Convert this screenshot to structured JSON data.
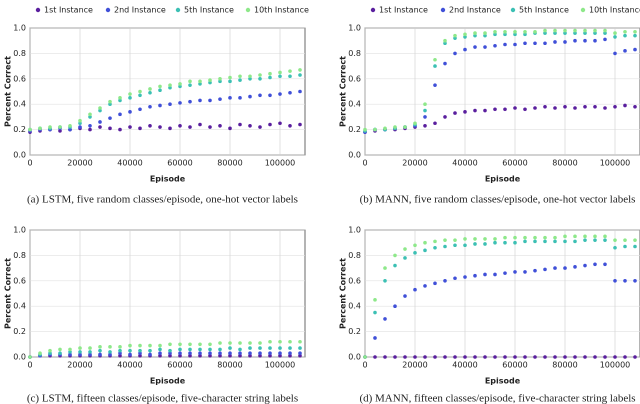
{
  "chart_data": [
    {
      "type": "scatter",
      "caption": "(a) LSTM, five random classes/episode, one-hot vector labels",
      "xlabel": "Episode",
      "ylabel": "Percent Correct",
      "legend": "top",
      "grid": true,
      "xlim": [
        0,
        110000
      ],
      "xticks": [
        0,
        20000,
        40000,
        60000,
        80000,
        100000
      ],
      "ylim": [
        0,
        1
      ],
      "yticks": [
        {
          "value": 0,
          "label": "0.0"
        },
        0.2,
        0.4,
        0.6,
        0.8,
        {
          "value": 1,
          "label": "1.0"
        }
      ],
      "x": [
        0,
        4000,
        8000,
        12000,
        16000,
        20000,
        24000,
        28000,
        32000,
        36000,
        40000,
        44000,
        48000,
        52000,
        56000,
        60000,
        64000,
        68000,
        72000,
        76000,
        80000,
        84000,
        88000,
        92000,
        96000,
        100000,
        104000,
        108000
      ],
      "series": [
        {
          "name": "1st Instance",
          "color": "#5a1f9e",
          "values": [
            0.18,
            0.19,
            0.2,
            0.19,
            0.2,
            0.21,
            0.2,
            0.22,
            0.21,
            0.2,
            0.22,
            0.21,
            0.23,
            0.22,
            0.21,
            0.23,
            0.22,
            0.24,
            0.22,
            0.23,
            0.21,
            0.24,
            0.23,
            0.22,
            0.24,
            0.25,
            0.23,
            0.24
          ]
        },
        {
          "name": "2nd Instance",
          "color": "#4050d8",
          "values": [
            0.19,
            0.2,
            0.2,
            0.21,
            0.2,
            0.22,
            0.23,
            0.26,
            0.29,
            0.32,
            0.34,
            0.36,
            0.38,
            0.39,
            0.4,
            0.41,
            0.42,
            0.43,
            0.43,
            0.44,
            0.45,
            0.45,
            0.46,
            0.47,
            0.47,
            0.48,
            0.49,
            0.5
          ]
        },
        {
          "name": "5th Instance",
          "color": "#3cc0b4",
          "values": [
            0.2,
            0.21,
            0.21,
            0.22,
            0.22,
            0.25,
            0.3,
            0.35,
            0.4,
            0.43,
            0.45,
            0.47,
            0.49,
            0.51,
            0.53,
            0.54,
            0.55,
            0.56,
            0.57,
            0.58,
            0.58,
            0.59,
            0.6,
            0.6,
            0.61,
            0.62,
            0.62,
            0.63
          ]
        },
        {
          "name": "10th Instance",
          "color": "#8ee88a",
          "values": [
            0.2,
            0.21,
            0.22,
            0.22,
            0.23,
            0.27,
            0.32,
            0.37,
            0.42,
            0.45,
            0.48,
            0.5,
            0.52,
            0.54,
            0.55,
            0.56,
            0.58,
            0.58,
            0.59,
            0.6,
            0.61,
            0.62,
            0.62,
            0.63,
            0.64,
            0.65,
            0.66,
            0.67
          ]
        }
      ]
    },
    {
      "type": "scatter",
      "caption": "(b) MANN, five random classes/episode, one-hot vector labels",
      "xlabel": "Episode",
      "ylabel": "Percent Correct",
      "legend": "top",
      "grid": true,
      "xlim": [
        0,
        110000
      ],
      "xticks": [
        0,
        20000,
        40000,
        60000,
        80000,
        100000
      ],
      "ylim": [
        0,
        1
      ],
      "yticks": [
        {
          "value": 0,
          "label": "0.0"
        },
        0.2,
        0.4,
        0.6,
        0.8,
        {
          "value": 1,
          "label": "1.0"
        }
      ],
      "x": [
        0,
        4000,
        8000,
        12000,
        16000,
        20000,
        24000,
        28000,
        32000,
        36000,
        40000,
        44000,
        48000,
        52000,
        56000,
        60000,
        64000,
        68000,
        72000,
        76000,
        80000,
        84000,
        88000,
        92000,
        96000,
        100000,
        104000,
        108000
      ],
      "series": [
        {
          "name": "1st Instance",
          "color": "#5a1f9e",
          "values": [
            0.18,
            0.19,
            0.2,
            0.2,
            0.21,
            0.22,
            0.23,
            0.25,
            0.3,
            0.33,
            0.34,
            0.35,
            0.35,
            0.36,
            0.36,
            0.37,
            0.36,
            0.37,
            0.38,
            0.37,
            0.38,
            0.37,
            0.38,
            0.38,
            0.37,
            0.38,
            0.39,
            0.38
          ]
        },
        {
          "name": "2nd Instance",
          "color": "#4050d8",
          "values": [
            0.18,
            0.2,
            0.2,
            0.21,
            0.22,
            0.23,
            0.3,
            0.55,
            0.72,
            0.8,
            0.83,
            0.85,
            0.85,
            0.86,
            0.87,
            0.87,
            0.88,
            0.88,
            0.88,
            0.89,
            0.89,
            0.9,
            0.9,
            0.9,
            0.91,
            0.8,
            0.82,
            0.83
          ]
        },
        {
          "name": "5th Instance",
          "color": "#3cc0b4",
          "values": [
            0.19,
            0.2,
            0.2,
            0.21,
            0.22,
            0.24,
            0.35,
            0.7,
            0.88,
            0.92,
            0.93,
            0.94,
            0.94,
            0.95,
            0.95,
            0.95,
            0.95,
            0.96,
            0.96,
            0.96,
            0.96,
            0.96,
            0.96,
            0.96,
            0.96,
            0.93,
            0.94,
            0.94
          ]
        },
        {
          "name": "10th Instance",
          "color": "#8ee88a",
          "values": [
            0.2,
            0.2,
            0.21,
            0.22,
            0.22,
            0.25,
            0.4,
            0.75,
            0.9,
            0.94,
            0.95,
            0.96,
            0.96,
            0.97,
            0.97,
            0.97,
            0.97,
            0.97,
            0.98,
            0.98,
            0.98,
            0.98,
            0.98,
            0.98,
            0.98,
            0.96,
            0.97,
            0.97
          ]
        }
      ]
    },
    {
      "type": "scatter",
      "caption": "(c) LSTM, fifteen classes/episode, five-character string labels",
      "xlabel": "Episode",
      "ylabel": "Percent Correct",
      "grid": true,
      "xlim": [
        0,
        110000
      ],
      "xticks": [
        0,
        20000,
        40000,
        60000,
        80000,
        100000
      ],
      "ylim": [
        0,
        1
      ],
      "yticks": [
        {
          "value": 0,
          "label": "0.0"
        },
        0.2,
        0.4,
        0.6,
        0.8,
        {
          "value": 1,
          "label": "1.0"
        }
      ],
      "x": [
        0,
        4000,
        8000,
        12000,
        16000,
        20000,
        24000,
        28000,
        32000,
        36000,
        40000,
        44000,
        48000,
        52000,
        56000,
        60000,
        64000,
        68000,
        72000,
        76000,
        80000,
        84000,
        88000,
        92000,
        96000,
        100000,
        104000,
        108000
      ],
      "series": [
        {
          "color": "#5a1f9e",
          "values": [
            0,
            0.01,
            0.01,
            0.01,
            0.01,
            0.01,
            0.01,
            0.01,
            0.01,
            0.01,
            0.01,
            0.01,
            0.01,
            0.01,
            0.01,
            0.01,
            0.01,
            0.01,
            0.01,
            0.01,
            0.01,
            0.01,
            0.01,
            0.01,
            0.01,
            0.01,
            0.01,
            0.01
          ]
        },
        {
          "color": "#4050d8",
          "values": [
            0,
            0.01,
            0.02,
            0.02,
            0.02,
            0.02,
            0.02,
            0.02,
            0.02,
            0.03,
            0.02,
            0.03,
            0.02,
            0.03,
            0.03,
            0.03,
            0.03,
            0.03,
            0.03,
            0.03,
            0.03,
            0.03,
            0.03,
            0.03,
            0.03,
            0.03,
            0.03,
            0.03
          ]
        },
        {
          "color": "#3cc0b4",
          "values": [
            0,
            0.02,
            0.03,
            0.03,
            0.04,
            0.04,
            0.04,
            0.05,
            0.04,
            0.05,
            0.05,
            0.05,
            0.05,
            0.06,
            0.05,
            0.06,
            0.06,
            0.06,
            0.06,
            0.06,
            0.07,
            0.06,
            0.07,
            0.07,
            0.07,
            0.07,
            0.07,
            0.07
          ]
        },
        {
          "color": "#8ee88a",
          "values": [
            0,
            0.03,
            0.05,
            0.06,
            0.06,
            0.07,
            0.07,
            0.08,
            0.08,
            0.08,
            0.09,
            0.09,
            0.09,
            0.09,
            0.1,
            0.1,
            0.1,
            0.1,
            0.1,
            0.11,
            0.11,
            0.11,
            0.11,
            0.11,
            0.12,
            0.12,
            0.12,
            0.12
          ]
        }
      ]
    },
    {
      "type": "scatter",
      "caption": "(d) MANN, fifteen classes/episode, five-character string labels",
      "xlabel": "Episode",
      "ylabel": "Percent Correct",
      "grid": true,
      "xlim": [
        0,
        110000
      ],
      "xticks": [
        0,
        20000,
        40000,
        60000,
        80000,
        100000
      ],
      "ylim": [
        0,
        1
      ],
      "yticks": [
        {
          "value": 0,
          "label": "0.0"
        },
        0.2,
        0.4,
        0.6,
        0.8,
        {
          "value": 1,
          "label": "1.0"
        }
      ],
      "x": [
        0,
        4000,
        8000,
        12000,
        16000,
        20000,
        24000,
        28000,
        32000,
        36000,
        40000,
        44000,
        48000,
        52000,
        56000,
        60000,
        64000,
        68000,
        72000,
        76000,
        80000,
        84000,
        88000,
        92000,
        96000,
        100000,
        104000,
        108000
      ],
      "series": [
        {
          "color": "#5a1f9e",
          "values": [
            0,
            0,
            0,
            0,
            0,
            0,
            0,
            0,
            0,
            0,
            0,
            0,
            0,
            0,
            0,
            0,
            0,
            0,
            0,
            0,
            0,
            0,
            0,
            0,
            0,
            0,
            0,
            0
          ]
        },
        {
          "color": "#4050d8",
          "values": [
            0,
            0.15,
            0.3,
            0.4,
            0.48,
            0.53,
            0.56,
            0.58,
            0.6,
            0.62,
            0.63,
            0.64,
            0.65,
            0.65,
            0.66,
            0.67,
            0.67,
            0.68,
            0.69,
            0.7,
            0.7,
            0.71,
            0.72,
            0.73,
            0.73,
            0.6,
            0.6,
            0.6
          ]
        },
        {
          "color": "#3cc0b4",
          "values": [
            0,
            0.35,
            0.6,
            0.72,
            0.78,
            0.82,
            0.84,
            0.86,
            0.87,
            0.88,
            0.88,
            0.89,
            0.89,
            0.9,
            0.9,
            0.9,
            0.91,
            0.91,
            0.91,
            0.91,
            0.91,
            0.91,
            0.92,
            0.92,
            0.92,
            0.86,
            0.87,
            0.87
          ]
        },
        {
          "color": "#8ee88a",
          "values": [
            0,
            0.45,
            0.7,
            0.8,
            0.85,
            0.88,
            0.9,
            0.91,
            0.92,
            0.92,
            0.93,
            0.93,
            0.93,
            0.93,
            0.94,
            0.94,
            0.94,
            0.94,
            0.94,
            0.94,
            0.95,
            0.95,
            0.95,
            0.95,
            0.95,
            0.92,
            0.92,
            0.92
          ]
        }
      ]
    }
  ]
}
